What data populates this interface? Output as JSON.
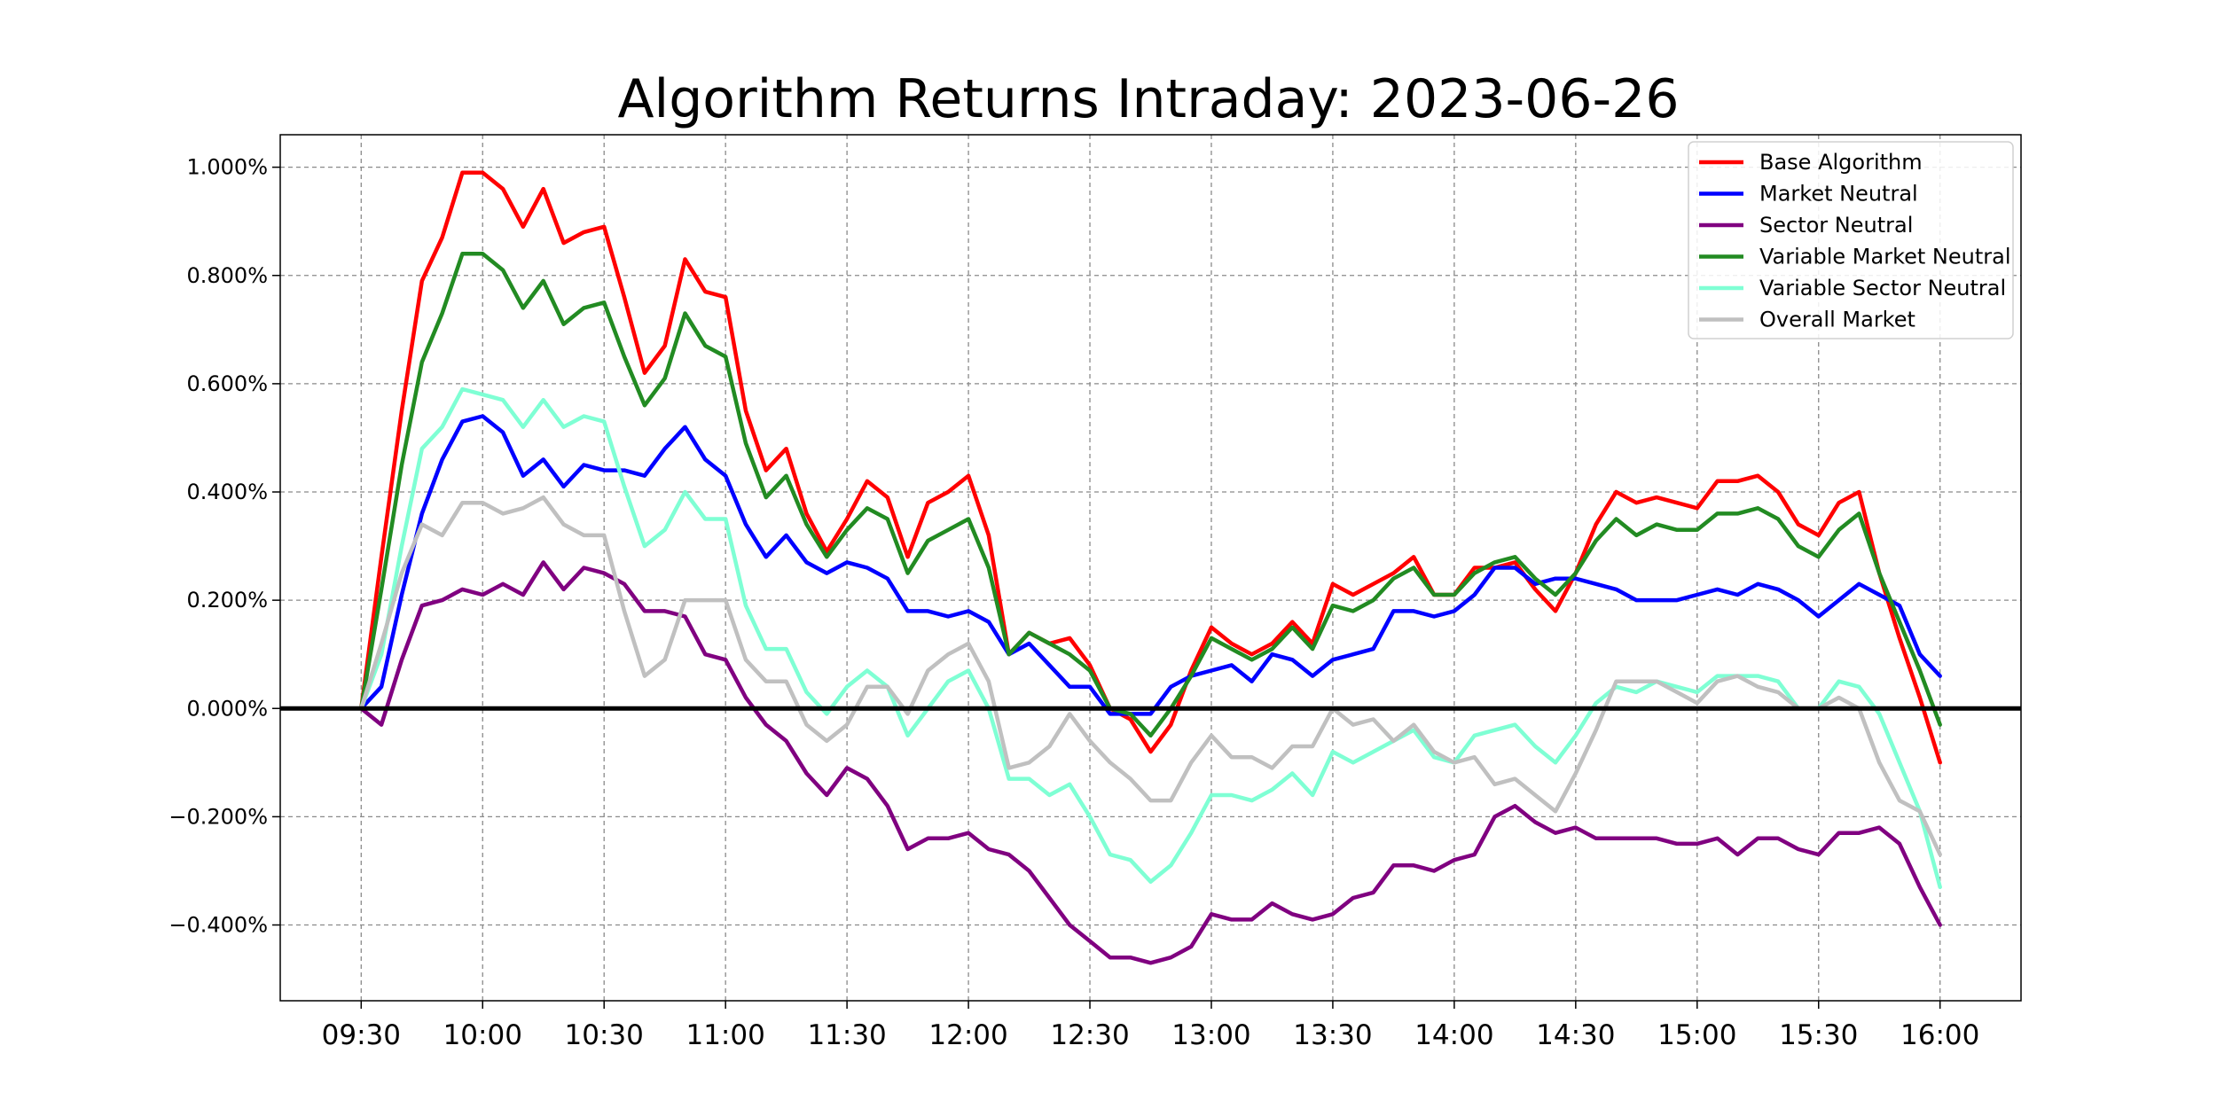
{
  "chart_data": {
    "type": "line",
    "title": "Algorithm Returns Intraday: 2023-06-26",
    "xlabel": "",
    "ylabel": "",
    "x_ticks": [
      "09:30",
      "10:00",
      "10:30",
      "11:00",
      "11:30",
      "12:00",
      "12:30",
      "13:00",
      "13:30",
      "14:00",
      "14:30",
      "15:00",
      "15:30",
      "16:00"
    ],
    "y_ticks": [
      "−0.400%",
      "−0.200%",
      "0.000%",
      "0.200%",
      "0.400%",
      "0.600%",
      "0.800%",
      "1.000%"
    ],
    "ylim": [
      -0.54,
      1.06
    ],
    "xlim": [
      "09:10",
      "16:20"
    ],
    "grid": true,
    "legend_position": "top-right",
    "baseline": 0,
    "x": [
      "09:30",
      "09:35",
      "09:40",
      "09:45",
      "09:50",
      "09:55",
      "10:00",
      "10:05",
      "10:10",
      "10:15",
      "10:20",
      "10:25",
      "10:30",
      "10:35",
      "10:40",
      "10:45",
      "10:50",
      "10:55",
      "11:00",
      "11:05",
      "11:10",
      "11:15",
      "11:20",
      "11:25",
      "11:30",
      "11:35",
      "11:40",
      "11:45",
      "11:50",
      "11:55",
      "12:00",
      "12:05",
      "12:10",
      "12:15",
      "12:20",
      "12:25",
      "12:30",
      "12:35",
      "12:40",
      "12:45",
      "12:50",
      "12:55",
      "13:00",
      "13:05",
      "13:10",
      "13:15",
      "13:20",
      "13:25",
      "13:30",
      "13:35",
      "13:40",
      "13:45",
      "13:50",
      "13:55",
      "14:00",
      "14:05",
      "14:10",
      "14:15",
      "14:20",
      "14:25",
      "14:30",
      "14:35",
      "14:40",
      "14:45",
      "14:50",
      "14:55",
      "15:00",
      "15:05",
      "15:10",
      "15:15",
      "15:20",
      "15:25",
      "15:30",
      "15:35",
      "15:40",
      "15:45",
      "15:50",
      "15:55",
      "16:00"
    ],
    "series": [
      {
        "name": "Base Algorithm",
        "color": "#ff0000",
        "values": [
          0.0,
          0.28,
          0.55,
          0.79,
          0.87,
          0.99,
          0.99,
          0.96,
          0.89,
          0.96,
          0.86,
          0.88,
          0.89,
          0.76,
          0.62,
          0.67,
          0.83,
          0.77,
          0.76,
          0.55,
          0.44,
          0.48,
          0.36,
          0.29,
          0.35,
          0.42,
          0.39,
          0.28,
          0.38,
          0.4,
          0.43,
          0.32,
          0.1,
          0.14,
          0.12,
          0.13,
          0.08,
          0.0,
          -0.02,
          -0.08,
          -0.03,
          0.07,
          0.15,
          0.12,
          0.1,
          0.12,
          0.16,
          0.12,
          0.23,
          0.21,
          0.23,
          0.25,
          0.28,
          0.21,
          0.21,
          0.26,
          0.26,
          0.27,
          0.22,
          0.18,
          0.25,
          0.34,
          0.4,
          0.38,
          0.39,
          0.38,
          0.37,
          0.42,
          0.42,
          0.43,
          0.4,
          0.34,
          0.32,
          0.38,
          0.4,
          0.25,
          0.13,
          0.02,
          -0.1
        ]
      },
      {
        "name": "Market Neutral",
        "color": "#0000ff",
        "values": [
          0.0,
          0.04,
          0.21,
          0.36,
          0.46,
          0.53,
          0.54,
          0.51,
          0.43,
          0.46,
          0.41,
          0.45,
          0.44,
          0.44,
          0.43,
          0.48,
          0.52,
          0.46,
          0.43,
          0.34,
          0.28,
          0.32,
          0.27,
          0.25,
          0.27,
          0.26,
          0.24,
          0.18,
          0.18,
          0.17,
          0.18,
          0.16,
          0.1,
          0.12,
          0.08,
          0.04,
          0.04,
          -0.01,
          -0.01,
          -0.01,
          0.04,
          0.06,
          0.07,
          0.08,
          0.05,
          0.1,
          0.09,
          0.06,
          0.09,
          0.1,
          0.11,
          0.18,
          0.18,
          0.17,
          0.18,
          0.21,
          0.26,
          0.26,
          0.23,
          0.24,
          0.24,
          0.23,
          0.22,
          0.2,
          0.2,
          0.2,
          0.21,
          0.22,
          0.21,
          0.23,
          0.22,
          0.2,
          0.17,
          0.2,
          0.23,
          0.21,
          0.19,
          0.1,
          0.06
        ]
      },
      {
        "name": "Sector Neutral",
        "color": "#800080",
        "values": [
          0.0,
          -0.03,
          0.09,
          0.19,
          0.2,
          0.22,
          0.21,
          0.23,
          0.21,
          0.27,
          0.22,
          0.26,
          0.25,
          0.23,
          0.18,
          0.18,
          0.17,
          0.1,
          0.09,
          0.02,
          -0.03,
          -0.06,
          -0.12,
          -0.16,
          -0.11,
          -0.13,
          -0.18,
          -0.26,
          -0.24,
          -0.24,
          -0.23,
          -0.26,
          -0.27,
          -0.3,
          -0.35,
          -0.4,
          -0.43,
          -0.46,
          -0.46,
          -0.47,
          -0.46,
          -0.44,
          -0.38,
          -0.39,
          -0.39,
          -0.36,
          -0.38,
          -0.39,
          -0.38,
          -0.35,
          -0.34,
          -0.29,
          -0.29,
          -0.3,
          -0.28,
          -0.27,
          -0.2,
          -0.18,
          -0.21,
          -0.23,
          -0.22,
          -0.24,
          -0.24,
          -0.24,
          -0.24,
          -0.25,
          -0.25,
          -0.24,
          -0.27,
          -0.24,
          -0.24,
          -0.26,
          -0.27,
          -0.23,
          -0.23,
          -0.22,
          -0.25,
          -0.33,
          -0.4
        ]
      },
      {
        "name": "Variable Market Neutral",
        "color": "#228b22",
        "values": [
          0.0,
          0.22,
          0.45,
          0.64,
          0.73,
          0.84,
          0.84,
          0.81,
          0.74,
          0.79,
          0.71,
          0.74,
          0.75,
          0.65,
          0.56,
          0.61,
          0.73,
          0.67,
          0.65,
          0.49,
          0.39,
          0.43,
          0.34,
          0.28,
          0.33,
          0.37,
          0.35,
          0.25,
          0.31,
          0.33,
          0.35,
          0.26,
          0.1,
          0.14,
          0.12,
          0.1,
          0.07,
          0.0,
          -0.01,
          -0.05,
          0.0,
          0.06,
          0.13,
          0.11,
          0.09,
          0.11,
          0.15,
          0.11,
          0.19,
          0.18,
          0.2,
          0.24,
          0.26,
          0.21,
          0.21,
          0.25,
          0.27,
          0.28,
          0.24,
          0.21,
          0.25,
          0.31,
          0.35,
          0.32,
          0.34,
          0.33,
          0.33,
          0.36,
          0.36,
          0.37,
          0.35,
          0.3,
          0.28,
          0.33,
          0.36,
          0.25,
          0.16,
          0.07,
          -0.03
        ]
      },
      {
        "name": "Variable Sector Neutral",
        "color": "#7fffd4",
        "values": [
          0.0,
          0.1,
          0.3,
          0.48,
          0.52,
          0.59,
          0.58,
          0.57,
          0.52,
          0.57,
          0.52,
          0.54,
          0.53,
          0.41,
          0.3,
          0.33,
          0.4,
          0.35,
          0.35,
          0.19,
          0.11,
          0.11,
          0.03,
          -0.01,
          0.04,
          0.07,
          0.04,
          -0.05,
          0.0,
          0.05,
          0.07,
          0.0,
          -0.13,
          -0.13,
          -0.16,
          -0.14,
          -0.2,
          -0.27,
          -0.28,
          -0.32,
          -0.29,
          -0.23,
          -0.16,
          -0.16,
          -0.17,
          -0.15,
          -0.12,
          -0.16,
          -0.08,
          -0.1,
          -0.08,
          -0.06,
          -0.04,
          -0.09,
          -0.1,
          -0.05,
          -0.04,
          -0.03,
          -0.07,
          -0.1,
          -0.05,
          0.01,
          0.04,
          0.03,
          0.05,
          0.04,
          0.03,
          0.06,
          0.06,
          0.06,
          0.05,
          0.0,
          0.0,
          0.05,
          0.04,
          -0.01,
          -0.1,
          -0.19,
          -0.33
        ]
      },
      {
        "name": "Overall Market",
        "color": "#c0c0c0",
        "values": [
          0.0,
          0.12,
          0.25,
          0.34,
          0.32,
          0.38,
          0.38,
          0.36,
          0.37,
          0.39,
          0.34,
          0.32,
          0.32,
          0.18,
          0.06,
          0.09,
          0.2,
          0.2,
          0.2,
          0.09,
          0.05,
          0.05,
          -0.03,
          -0.06,
          -0.03,
          0.04,
          0.04,
          -0.01,
          0.07,
          0.1,
          0.12,
          0.05,
          -0.11,
          -0.1,
          -0.07,
          -0.01,
          -0.06,
          -0.1,
          -0.13,
          -0.17,
          -0.17,
          -0.1,
          -0.05,
          -0.09,
          -0.09,
          -0.11,
          -0.07,
          -0.07,
          0.0,
          -0.03,
          -0.02,
          -0.06,
          -0.03,
          -0.08,
          -0.1,
          -0.09,
          -0.14,
          -0.13,
          -0.16,
          -0.19,
          -0.12,
          -0.04,
          0.05,
          0.05,
          0.05,
          0.03,
          0.01,
          0.05,
          0.06,
          0.04,
          0.03,
          0.0,
          0.0,
          0.02,
          0.0,
          -0.1,
          -0.17,
          -0.19,
          -0.27
        ]
      }
    ]
  }
}
